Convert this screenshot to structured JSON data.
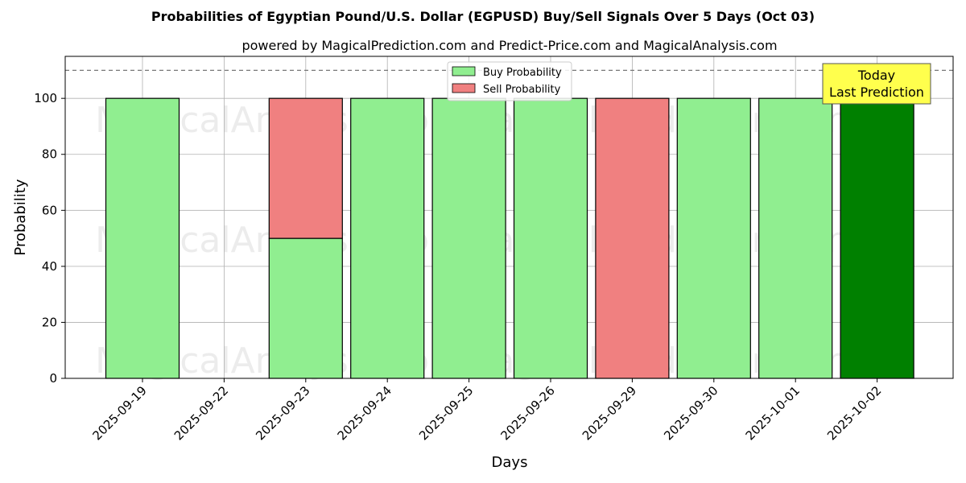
{
  "chart_data": {
    "type": "bar",
    "stacked": true,
    "title": "Probabilities of Egyptian Pound/U.S. Dollar (EGPUSD) Buy/Sell Signals Over 5 Days (Oct 03)",
    "subtitle": "powered by MagicalPrediction.com and Predict-Price.com and MagicalAnalysis.com",
    "xlabel": "Days",
    "ylabel": "Probability",
    "ylim": [
      0,
      115
    ],
    "yticks": [
      "0",
      "20",
      "40",
      "60",
      "80",
      "100"
    ],
    "grid": true,
    "reference_line": 110,
    "legend_position": "top-center",
    "categories": [
      "2025-09-19",
      "2025-09-22",
      "2025-09-23",
      "2025-09-24",
      "2025-09-25",
      "2025-09-26",
      "2025-09-29",
      "2025-09-30",
      "2025-10-01",
      "2025-10-02"
    ],
    "series": [
      {
        "name": "Buy Probability",
        "color": "#90ee90",
        "values": [
          100,
          0,
          50,
          100,
          100,
          100,
          0,
          100,
          100,
          100
        ]
      },
      {
        "name": "Sell Probability",
        "color": "#f08080",
        "values": [
          0,
          0,
          50,
          0,
          0,
          0,
          100,
          0,
          0,
          0
        ]
      }
    ],
    "highlight": {
      "category": "2025-10-02",
      "color": "#008000"
    },
    "annotation": {
      "lines": [
        "Today",
        "Last Prediction"
      ],
      "background": "#ffff4d",
      "category": "2025-10-02"
    },
    "watermarks": [
      "MagicalAnalysis.com",
      "MagicalPrediction.com"
    ]
  }
}
